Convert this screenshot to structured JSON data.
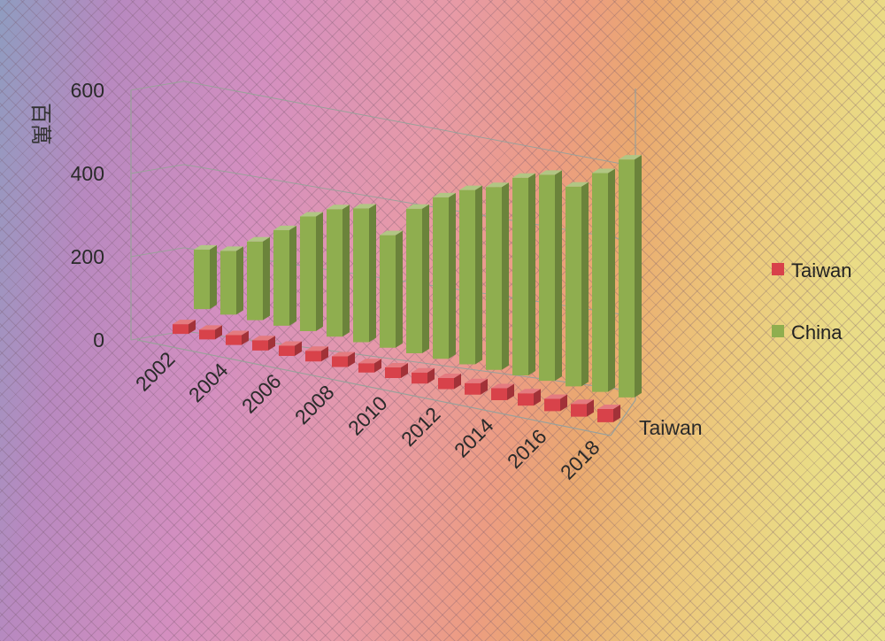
{
  "chart_data": {
    "type": "bar",
    "subtype": "3d-clustered-column",
    "ylabel": "百萬",
    "ylim": [
      0,
      600
    ],
    "yticks": [
      "600",
      "400",
      "200",
      "0"
    ],
    "categories": [
      "2002",
      "2003",
      "2004",
      "2005",
      "2006",
      "2007",
      "2008",
      "2009",
      "2010",
      "2011",
      "2012",
      "2013",
      "2014",
      "2015",
      "2016",
      "2017",
      "2018"
    ],
    "xtick_labels": [
      "2002",
      "2004",
      "2006",
      "2008",
      "2010",
      "2012",
      "2014",
      "2016",
      "2018"
    ],
    "depth_axis_label": "Taiwan",
    "grid": true,
    "legend_position": "right",
    "series": [
      {
        "name": "Taiwan",
        "color": "#d8424a",
        "values": [
          23,
          23,
          23,
          24,
          24,
          25,
          25,
          22,
          25,
          26,
          26,
          27,
          28,
          29,
          29,
          30,
          31
        ]
      },
      {
        "name": "China",
        "color": "#8fae4f",
        "values": [
          140,
          150,
          185,
          225,
          270,
          300,
          315,
          265,
          340,
          380,
          410,
          430,
          465,
          485,
          470,
          515,
          560
        ]
      }
    ]
  }
}
